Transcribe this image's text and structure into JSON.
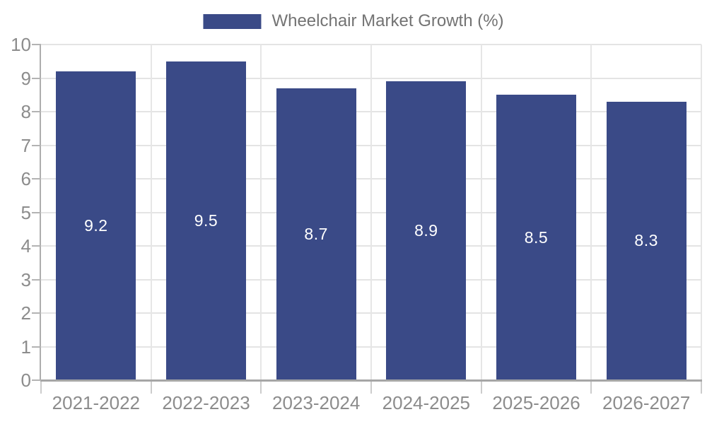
{
  "legend": {
    "label": "Wheelchair Market Growth (%)"
  },
  "chart_data": {
    "type": "bar",
    "title": "Wheelchair Market Growth (%)",
    "categories": [
      "2021-2022",
      "2022-2023",
      "2023-2024",
      "2024-2025",
      "2025-2026",
      "2026-2027"
    ],
    "values": [
      9.2,
      9.5,
      8.7,
      8.9,
      8.5,
      8.3
    ],
    "value_labels": [
      "9.2",
      "9.5",
      "8.7",
      "8.9",
      "8.5",
      "8.3"
    ],
    "xlabel": "",
    "ylabel": "",
    "ylim": [
      0,
      10
    ],
    "yticks": [
      0,
      1,
      2,
      3,
      4,
      5,
      6,
      7,
      8,
      9,
      10
    ],
    "grid": true,
    "legend_position": "top-center",
    "colors": {
      "bar": "#3A4A87",
      "value_label": "#FFFFFF",
      "gridline": "#E4E4E4",
      "axis": "#A9A9A9",
      "tick_label": "#8C8C8C",
      "legend_text": "#737373",
      "background": "#FFFFFF"
    }
  }
}
